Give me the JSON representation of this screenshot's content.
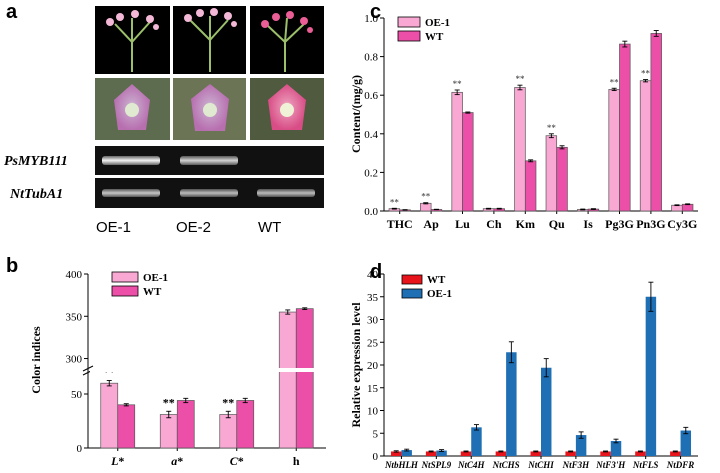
{
  "panels": {
    "a": "a",
    "b": "b",
    "c": "c",
    "d": "d"
  },
  "panel_a": {
    "gel_labels": [
      "PsMYB111",
      "NtTubA1"
    ],
    "lanes": [
      "OE-1",
      "OE-2",
      "WT"
    ]
  },
  "chart_data": [
    {
      "id": "b",
      "type": "bar",
      "ylabel": "Color indices",
      "categories": [
        "L*",
        "a*",
        "C*",
        "h"
      ],
      "yticks": [
        "0",
        "50",
        "300",
        "350",
        "400"
      ],
      "axis_break": [
        75,
        290
      ],
      "series": [
        {
          "name": "OE-1",
          "color": "#f9a8d4",
          "values": [
            60,
            31,
            31,
            355
          ],
          "errors": [
            2.5,
            3,
            3,
            2.5
          ],
          "significance": [
            "**",
            "**",
            "**",
            ""
          ]
        },
        {
          "name": "WT",
          "color": "#ec4fa8",
          "values": [
            40,
            44,
            44,
            359
          ],
          "errors": [
            1,
            2,
            2,
            1
          ]
        }
      ]
    },
    {
      "id": "c",
      "type": "bar",
      "ylabel": "Content/(mg/g)",
      "ylim": [
        0,
        1.0
      ],
      "yticks": [
        "0.0",
        "0.2",
        "0.4",
        "0.6",
        "0.8",
        "1.0"
      ],
      "categories": [
        "THC",
        "Ap",
        "Lu",
        "Ch",
        "Km",
        "Qu",
        "Is",
        "Pg3G",
        "Pn3G",
        "Cy3G"
      ],
      "series": [
        {
          "name": "OE-1",
          "color": "#f9a8d4",
          "values": [
            0.012,
            0.04,
            0.615,
            0.012,
            0.64,
            0.39,
            0.008,
            0.63,
            0.675,
            0.03
          ],
          "errors": [
            0.002,
            0.003,
            0.012,
            0.002,
            0.012,
            0.01,
            0.002,
            0.006,
            0.006,
            0.002
          ],
          "significance": [
            "**",
            "**",
            "**",
            "",
            "**",
            "**",
            "",
            "**",
            "**",
            ""
          ]
        },
        {
          "name": "WT",
          "color": "#ec4fa8",
          "values": [
            0.006,
            0.008,
            0.51,
            0.012,
            0.26,
            0.33,
            0.01,
            0.865,
            0.92,
            0.035
          ],
          "errors": [
            0.001,
            0.001,
            0.003,
            0.002,
            0.005,
            0.008,
            0.002,
            0.015,
            0.015,
            0.002
          ]
        }
      ]
    },
    {
      "id": "d",
      "type": "bar",
      "ylabel": "Relative expression level",
      "ylim": [
        0,
        40
      ],
      "yticks": [
        "0",
        "5",
        "10",
        "15",
        "20",
        "25",
        "30",
        "35",
        "40"
      ],
      "categories": [
        "NtbHLH",
        "NtSPL9",
        "NtC4H",
        "NtCHS",
        "NtCHI",
        "NtF3H",
        "NtF3'H",
        "NtFLS",
        "NtDFR"
      ],
      "series": [
        {
          "name": "WT",
          "color": "#e8141c",
          "values": [
            1,
            1,
            1,
            1,
            1,
            1,
            1,
            1,
            1
          ],
          "errors": [
            0.15,
            0.1,
            0.1,
            0.1,
            0.1,
            0.1,
            0.1,
            0.1,
            0.1
          ]
        },
        {
          "name": "OE-1",
          "color": "#1f6fb5",
          "values": [
            1.3,
            1.2,
            6.3,
            22.8,
            19.4,
            4.6,
            3.3,
            35,
            5.6
          ],
          "errors": [
            0.2,
            0.2,
            0.6,
            2.3,
            2.0,
            0.7,
            0.4,
            3.2,
            0.7
          ]
        }
      ]
    }
  ]
}
